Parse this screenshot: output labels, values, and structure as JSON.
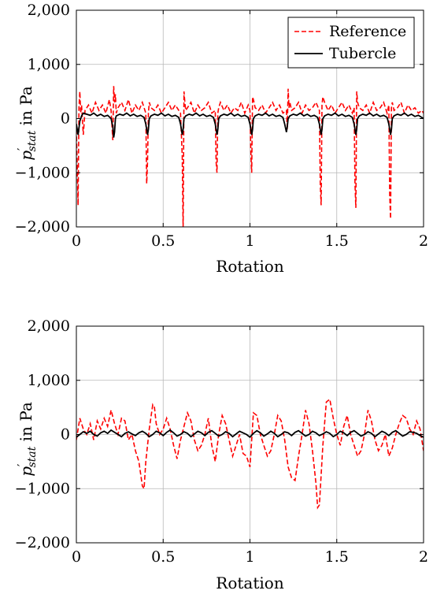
{
  "chart_data": [
    {
      "type": "line",
      "xlabel": "Rotation",
      "ylabel_main": "p",
      "ylabel_prime": "′",
      "ylabel_sub": "stat",
      "ylabel_rest": " in Pa",
      "xlim": [
        0,
        2
      ],
      "ylim": [
        -2000,
        2000
      ],
      "xticks": [
        0,
        0.5,
        1,
        1.5,
        2
      ],
      "xtick_labels": [
        "0",
        "0.5",
        "1",
        "1.5",
        "2"
      ],
      "yticks": [
        -2000,
        -1000,
        0,
        1000,
        2000
      ],
      "ytick_labels": [
        "−2,000",
        "−1,000",
        "0",
        "1,000",
        "2,000"
      ],
      "grid": true,
      "legend": {
        "placement": "top-right",
        "entries": [
          "Reference",
          "Tubercle"
        ]
      },
      "series": [
        {
          "name": "Reference",
          "color": "#ff0000",
          "style": "dashed",
          "x": [
            0,
            0.01,
            0.015,
            0.02,
            0.025,
            0.03,
            0.04,
            0.05,
            0.07,
            0.09,
            0.11,
            0.13,
            0.15,
            0.17,
            0.19,
            0.2,
            0.21,
            0.215,
            0.22,
            0.225,
            0.23,
            0.24,
            0.26,
            0.28,
            0.3,
            0.32,
            0.34,
            0.36,
            0.38,
            0.4,
            0.405,
            0.41,
            0.415,
            0.42,
            0.43,
            0.45,
            0.47,
            0.49,
            0.51,
            0.53,
            0.55,
            0.57,
            0.59,
            0.6,
            0.61,
            0.615,
            0.62,
            0.625,
            0.63,
            0.64,
            0.66,
            0.68,
            0.7,
            0.72,
            0.74,
            0.76,
            0.78,
            0.8,
            0.805,
            0.81,
            0.815,
            0.82,
            0.83,
            0.85,
            0.87,
            0.89,
            0.91,
            0.93,
            0.95,
            0.97,
            0.99,
            1.0,
            1.005,
            1.01,
            1.015,
            1.02,
            1.03,
            1.05,
            1.07,
            1.09,
            1.11,
            1.13,
            1.15,
            1.17,
            1.19,
            1.21,
            1.215,
            1.22,
            1.225,
            1.23,
            1.24,
            1.26,
            1.28,
            1.3,
            1.32,
            1.34,
            1.36,
            1.38,
            1.4,
            1.405,
            1.41,
            1.415,
            1.42,
            1.43,
            1.45,
            1.47,
            1.49,
            1.51,
            1.53,
            1.55,
            1.57,
            1.59,
            1.6,
            1.605,
            1.61,
            1.615,
            1.62,
            1.63,
            1.65,
            1.67,
            1.69,
            1.71,
            1.73,
            1.75,
            1.77,
            1.79,
            1.8,
            1.805,
            1.81,
            1.815,
            1.82,
            1.83,
            1.85,
            1.87,
            1.89,
            1.91,
            1.93,
            1.95,
            1.97,
            1.99,
            2.0
          ],
          "y": [
            -200,
            -1600,
            200,
            500,
            100,
            250,
            -300,
            150,
            250,
            100,
            300,
            150,
            250,
            100,
            350,
            150,
            -400,
            600,
            300,
            450,
            100,
            200,
            300,
            150,
            350,
            100,
            250,
            150,
            300,
            100,
            -1200,
            -800,
            100,
            300,
            200,
            150,
            250,
            100,
            200,
            300,
            150,
            250,
            150,
            100,
            -700,
            -2000,
            500,
            300,
            150,
            200,
            300,
            100,
            250,
            150,
            200,
            300,
            100,
            150,
            -800,
            -1000,
            100,
            200,
            300,
            150,
            250,
            100,
            200,
            150,
            300,
            100,
            250,
            150,
            -600,
            -1000,
            400,
            350,
            200,
            150,
            250,
            100,
            200,
            300,
            150,
            250,
            100,
            150,
            -200,
            550,
            200,
            300,
            150,
            200,
            300,
            100,
            250,
            150,
            200,
            300,
            150,
            -1200,
            -1600,
            250,
            400,
            300,
            150,
            250,
            100,
            200,
            300,
            150,
            250,
            100,
            200,
            -1200,
            -1650,
            500,
            300,
            200,
            150,
            250,
            100,
            300,
            150,
            200,
            300,
            100,
            250,
            -1400,
            -1850,
            200,
            300,
            150,
            200,
            300,
            100,
            250,
            150,
            200,
            100,
            150,
            100
          ]
        },
        {
          "name": "Tubercle",
          "color": "#000000",
          "style": "solid",
          "x": [
            0,
            0.01,
            0.02,
            0.03,
            0.04,
            0.06,
            0.08,
            0.1,
            0.12,
            0.14,
            0.16,
            0.18,
            0.2,
            0.21,
            0.215,
            0.22,
            0.225,
            0.23,
            0.25,
            0.27,
            0.29,
            0.31,
            0.33,
            0.35,
            0.37,
            0.39,
            0.4,
            0.41,
            0.415,
            0.42,
            0.43,
            0.45,
            0.47,
            0.49,
            0.51,
            0.53,
            0.55,
            0.57,
            0.59,
            0.6,
            0.61,
            0.615,
            0.62,
            0.63,
            0.65,
            0.67,
            0.69,
            0.71,
            0.73,
            0.75,
            0.77,
            0.79,
            0.8,
            0.81,
            0.815,
            0.82,
            0.83,
            0.85,
            0.87,
            0.89,
            0.91,
            0.93,
            0.95,
            0.97,
            0.99,
            1.0,
            1.01,
            1.015,
            1.02,
            1.03,
            1.05,
            1.07,
            1.09,
            1.11,
            1.13,
            1.15,
            1.17,
            1.19,
            1.2,
            1.21,
            1.215,
            1.22,
            1.23,
            1.25,
            1.27,
            1.29,
            1.31,
            1.33,
            1.35,
            1.37,
            1.39,
            1.4,
            1.41,
            1.415,
            1.42,
            1.43,
            1.45,
            1.47,
            1.49,
            1.51,
            1.53,
            1.55,
            1.57,
            1.59,
            1.6,
            1.61,
            1.615,
            1.62,
            1.63,
            1.65,
            1.67,
            1.69,
            1.71,
            1.73,
            1.75,
            1.77,
            1.79,
            1.8,
            1.81,
            1.815,
            1.82,
            1.83,
            1.85,
            1.87,
            1.89,
            1.91,
            1.93,
            1.95,
            1.97,
            1.99,
            2.0
          ],
          "y": [
            -100,
            -300,
            -50,
            50,
            100,
            80,
            60,
            100,
            50,
            80,
            40,
            60,
            0,
            -150,
            -350,
            -250,
            0,
            50,
            80,
            60,
            100,
            50,
            80,
            40,
            60,
            20,
            -100,
            -300,
            -200,
            0,
            50,
            80,
            60,
            100,
            50,
            80,
            40,
            60,
            20,
            -100,
            -300,
            -200,
            0,
            50,
            80,
            60,
            100,
            50,
            80,
            40,
            60,
            20,
            -100,
            -300,
            -200,
            0,
            50,
            80,
            60,
            100,
            50,
            80,
            40,
            60,
            20,
            -100,
            -300,
            -200,
            0,
            50,
            80,
            60,
            100,
            50,
            80,
            40,
            60,
            20,
            -100,
            -250,
            -150,
            0,
            50,
            80,
            60,
            100,
            50,
            80,
            40,
            60,
            20,
            -100,
            -300,
            -200,
            0,
            50,
            80,
            60,
            100,
            50,
            80,
            40,
            60,
            20,
            -100,
            -300,
            -200,
            0,
            50,
            80,
            60,
            100,
            50,
            80,
            40,
            60,
            20,
            -100,
            -300,
            -200,
            0,
            50,
            80,
            60,
            100,
            50,
            80,
            40,
            60,
            20,
            0
          ]
        }
      ]
    },
    {
      "type": "line",
      "xlabel": "Rotation",
      "ylabel_main": "p",
      "ylabel_prime": "′",
      "ylabel_sub": "stat",
      "ylabel_rest": " in Pa",
      "xlim": [
        0,
        2
      ],
      "ylim": [
        -2000,
        2000
      ],
      "xticks": [
        0,
        0.5,
        1,
        1.5,
        2
      ],
      "xtick_labels": [
        "0",
        "0.5",
        "1",
        "1.5",
        "2"
      ],
      "yticks": [
        -2000,
        -1000,
        0,
        1000,
        2000
      ],
      "ytick_labels": [
        "−2,000",
        "−1,000",
        "0",
        "1,000",
        "2,000"
      ],
      "grid": true,
      "series": [
        {
          "name": "Reference",
          "color": "#ff0000",
          "style": "dashed",
          "x": [
            0,
            0.02,
            0.04,
            0.06,
            0.08,
            0.1,
            0.12,
            0.14,
            0.16,
            0.18,
            0.2,
            0.22,
            0.24,
            0.26,
            0.28,
            0.3,
            0.32,
            0.34,
            0.36,
            0.38,
            0.39,
            0.4,
            0.42,
            0.44,
            0.45,
            0.46,
            0.48,
            0.5,
            0.52,
            0.54,
            0.56,
            0.58,
            0.6,
            0.62,
            0.64,
            0.66,
            0.68,
            0.7,
            0.72,
            0.74,
            0.76,
            0.78,
            0.8,
            0.82,
            0.84,
            0.86,
            0.88,
            0.9,
            0.92,
            0.94,
            0.96,
            0.98,
            1.0,
            1.02,
            1.04,
            1.06,
            1.08,
            1.1,
            1.12,
            1.14,
            1.16,
            1.18,
            1.2,
            1.22,
            1.24,
            1.26,
            1.28,
            1.3,
            1.32,
            1.34,
            1.36,
            1.38,
            1.39,
            1.4,
            1.42,
            1.44,
            1.46,
            1.48,
            1.5,
            1.52,
            1.54,
            1.56,
            1.58,
            1.6,
            1.62,
            1.64,
            1.66,
            1.68,
            1.7,
            1.72,
            1.74,
            1.76,
            1.78,
            1.8,
            1.82,
            1.84,
            1.86,
            1.88,
            1.9,
            1.92,
            1.94,
            1.96,
            1.98,
            2.0
          ],
          "y": [
            -100,
            300,
            100,
            0,
            200,
            -100,
            250,
            100,
            300,
            150,
            450,
            200,
            0,
            300,
            250,
            -100,
            0,
            -300,
            -500,
            -950,
            -1000,
            -500,
            100,
            550,
            500,
            200,
            0,
            100,
            300,
            100,
            -200,
            -450,
            -100,
            150,
            400,
            250,
            -100,
            -300,
            -200,
            0,
            300,
            -200,
            -500,
            0,
            350,
            200,
            -100,
            -400,
            -200,
            0,
            -350,
            -400,
            -600,
            400,
            350,
            0,
            -200,
            -400,
            -300,
            0,
            350,
            250,
            -100,
            -600,
            -800,
            -850,
            -400,
            0,
            450,
            200,
            -300,
            -900,
            -1350,
            -1300,
            -200,
            600,
            650,
            300,
            0,
            -200,
            150,
            350,
            0,
            -200,
            -400,
            -300,
            0,
            450,
            250,
            -100,
            -300,
            -200,
            0,
            -400,
            -250,
            0,
            200,
            350,
            300,
            100,
            0,
            250,
            100,
            -300
          ]
        },
        {
          "name": "Tubercle",
          "color": "#000000",
          "style": "solid",
          "x": [
            0,
            0.02,
            0.04,
            0.06,
            0.08,
            0.1,
            0.12,
            0.14,
            0.16,
            0.18,
            0.2,
            0.22,
            0.24,
            0.26,
            0.28,
            0.3,
            0.32,
            0.34,
            0.36,
            0.38,
            0.4,
            0.42,
            0.44,
            0.46,
            0.48,
            0.5,
            0.52,
            0.54,
            0.56,
            0.58,
            0.6,
            0.62,
            0.64,
            0.66,
            0.68,
            0.7,
            0.72,
            0.74,
            0.76,
            0.78,
            0.8,
            0.82,
            0.84,
            0.86,
            0.88,
            0.9,
            0.92,
            0.94,
            0.96,
            0.98,
            1.0,
            1.02,
            1.04,
            1.06,
            1.08,
            1.1,
            1.12,
            1.14,
            1.16,
            1.18,
            1.2,
            1.22,
            1.24,
            1.26,
            1.28,
            1.3,
            1.32,
            1.34,
            1.36,
            1.38,
            1.4,
            1.42,
            1.44,
            1.46,
            1.48,
            1.5,
            1.52,
            1.54,
            1.56,
            1.58,
            1.6,
            1.62,
            1.64,
            1.66,
            1.68,
            1.7,
            1.72,
            1.74,
            1.76,
            1.78,
            1.8,
            1.82,
            1.84,
            1.86,
            1.88,
            1.9,
            1.92,
            1.94,
            1.96,
            1.98,
            2.0
          ],
          "y": [
            -50,
            0,
            50,
            20,
            60,
            0,
            -30,
            30,
            60,
            20,
            80,
            40,
            0,
            -40,
            20,
            50,
            10,
            -20,
            30,
            60,
            20,
            -40,
            0,
            60,
            30,
            -20,
            40,
            80,
            30,
            -30,
            0,
            50,
            20,
            -40,
            10,
            60,
            30,
            -20,
            40,
            70,
            20,
            -30,
            0,
            50,
            20,
            -40,
            10,
            60,
            30,
            0,
            -50,
            20,
            70,
            30,
            -30,
            10,
            60,
            20,
            -40,
            0,
            50,
            30,
            -20,
            40,
            70,
            20,
            -30,
            0,
            60,
            30,
            -20,
            10,
            50,
            20,
            -40,
            0,
            60,
            30,
            -20,
            40,
            70,
            20,
            -30,
            0,
            50,
            20,
            -40,
            10,
            60,
            30,
            -20,
            40,
            70,
            20,
            -30,
            0,
            50,
            40,
            20,
            -20,
            -50
          ]
        }
      ]
    }
  ]
}
